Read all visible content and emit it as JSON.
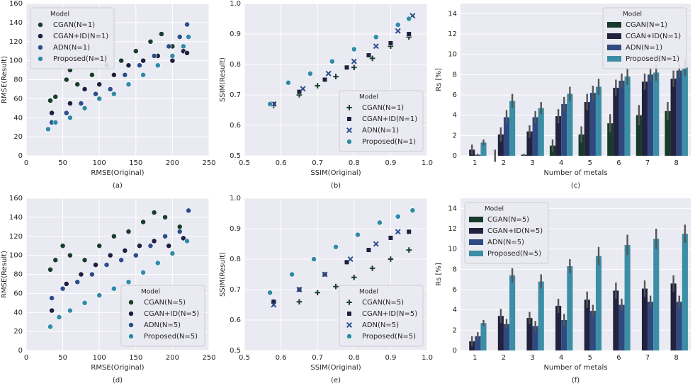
{
  "chart_data": [
    {
      "type": "scatter",
      "caption": "(a)",
      "xlabel": "RMSE(Original)",
      "ylabel": "RMSE(Result)",
      "xlim": [
        0,
        250
      ],
      "ylim": [
        0,
        160
      ],
      "xticks": [
        0,
        50,
        100,
        150,
        200,
        250
      ],
      "yticks": [
        0,
        20,
        40,
        60,
        80,
        100,
        120,
        140,
        160
      ],
      "grid": true,
      "legend": "upper left",
      "legend_title": "Model",
      "series": [
        {
          "name": "CGAN(N=1)",
          "color": "#1b3d2c",
          "marker": "circle",
          "x": [
            33,
            40,
            55,
            60,
            70,
            90,
            110,
            130,
            150,
            170,
            185,
            200
          ],
          "values": [
            58,
            62,
            80,
            90,
            75,
            85,
            95,
            100,
            110,
            120,
            128,
            115
          ]
        },
        {
          "name": "CGAN+ID(N=1)",
          "color": "#1f1f40",
          "marker": "circle",
          "x": [
            35,
            60,
            80,
            100,
            120,
            140,
            160,
            180,
            200,
            215,
            220
          ],
          "values": [
            45,
            55,
            70,
            75,
            85,
            95,
            100,
            105,
            100,
            110,
            108
          ]
        },
        {
          "name": "ADN(N=1)",
          "color": "#2c4f8c",
          "marker": "circle",
          "x": [
            35,
            55,
            75,
            95,
            115,
            135,
            155,
            175,
            195,
            210,
            220
          ],
          "values": [
            35,
            45,
            55,
            65,
            70,
            85,
            95,
            105,
            115,
            125,
            138
          ]
        },
        {
          "name": "Proposed(N=1)",
          "color": "#2f8ba8",
          "marker": "circle",
          "x": [
            30,
            40,
            60,
            80,
            100,
            120,
            140,
            160,
            180,
            200,
            215,
            222
          ],
          "values": [
            28,
            35,
            40,
            50,
            60,
            65,
            75,
            85,
            95,
            105,
            115,
            125
          ]
        }
      ]
    },
    {
      "type": "scatter",
      "caption": "(b)",
      "xlabel": "SSIM(Original)",
      "ylabel": "SSIM(Result)",
      "xlim": [
        0.5,
        1
      ],
      "ylim": [
        0.5,
        1
      ],
      "xticks": [
        0.5,
        0.6,
        0.7,
        0.8,
        0.9,
        {
          "value": 1,
          "label": "1.0"
        }
      ],
      "yticks": [
        0.5,
        0.6,
        0.7,
        0.8,
        0.9,
        {
          "value": 1,
          "label": "1.0"
        }
      ],
      "grid": true,
      "legend": "lower right",
      "legend_title": "Model",
      "series": [
        {
          "name": "CGAN(N=1)",
          "color": "#1b3d2c",
          "marker": "plus",
          "x": [
            0.58,
            0.65,
            0.7,
            0.75,
            0.8,
            0.85,
            0.9,
            0.95
          ],
          "values": [
            0.665,
            0.7,
            0.73,
            0.76,
            0.79,
            0.82,
            0.86,
            0.89
          ]
        },
        {
          "name": "CGAN+ID(N=1)",
          "color": "#1f1f40",
          "marker": "square",
          "x": [
            0.58,
            0.65,
            0.72,
            0.78,
            0.84,
            0.9,
            0.95
          ],
          "values": [
            0.67,
            0.71,
            0.75,
            0.79,
            0.83,
            0.87,
            0.9
          ]
        },
        {
          "name": "ADN(N=1)",
          "color": "#2c4f8c",
          "marker": "x",
          "x": [
            0.58,
            0.66,
            0.73,
            0.8,
            0.86,
            0.92,
            0.96
          ],
          "values": [
            0.67,
            0.72,
            0.77,
            0.81,
            0.86,
            0.91,
            0.96
          ]
        },
        {
          "name": "Proposed(N=1)",
          "color": "#2f8ba8",
          "marker": "circle",
          "x": [
            0.57,
            0.62,
            0.68,
            0.74,
            0.8,
            0.86,
            0.92,
            0.95
          ],
          "values": [
            0.67,
            0.74,
            0.77,
            0.81,
            0.85,
            0.89,
            0.93,
            0.95
          ]
        }
      ]
    },
    {
      "type": "bar",
      "caption": "(c)",
      "xlabel": "Number of metals",
      "ylabel": "Rs [%]",
      "categories": [
        "1",
        "2",
        "3",
        "4",
        "5",
        "6",
        "7",
        "8"
      ],
      "ylim": [
        0,
        15
      ],
      "yticks": [
        0,
        2,
        4,
        6,
        8,
        10,
        12,
        14
      ],
      "grid": true,
      "legend": "upper right",
      "legend_title": "Model",
      "series": [
        {
          "name": "CGAN(N=1)",
          "color": "#173b2b",
          "values": [
            0,
            0,
            0.1,
            1,
            2.1,
            3.2,
            4,
            4.4
          ],
          "errors": [
            0,
            0.6,
            0.1,
            0.6,
            0.8,
            0.9,
            1,
            0.9
          ]
        },
        {
          "name": "CGAN+ID(N=1)",
          "color": "#22223f",
          "values": [
            0.6,
            2.1,
            2.4,
            3.9,
            5.3,
            6.7,
            7.3,
            7.6
          ],
          "errors": [
            0.5,
            0.7,
            0.6,
            0.7,
            0.8,
            0.8,
            0.8,
            0.8
          ]
        },
        {
          "name": "ADN(N=1)",
          "color": "#2f4a80",
          "values": [
            0.1,
            3.8,
            3.8,
            5.1,
            6.2,
            7.4,
            8,
            8.4
          ],
          "errors": [
            0.1,
            0.7,
            0.6,
            0.7,
            0.7,
            0.7,
            0.7,
            0.7
          ]
        },
        {
          "name": "Proposed(N=1)",
          "color": "#3c8ea6",
          "values": [
            1.3,
            5.4,
            4.7,
            6.1,
            6.8,
            7.8,
            8.2,
            8.7
          ],
          "errors": [
            0.3,
            0.7,
            0.6,
            0.7,
            0.8,
            0.8,
            0.8,
            0.8
          ]
        }
      ]
    },
    {
      "type": "scatter",
      "caption": "(d)",
      "xlabel": "RMSE(Original)",
      "ylabel": "RMSE(Result)",
      "xlim": [
        0,
        250
      ],
      "ylim": [
        0,
        160
      ],
      "xticks": [
        0,
        50,
        100,
        150,
        200,
        250
      ],
      "yticks": [
        0,
        20,
        40,
        60,
        80,
        100,
        120,
        140,
        160
      ],
      "grid": true,
      "legend": "lower right",
      "legend_title": "Model",
      "series": [
        {
          "name": "CGAN(N=5)",
          "color": "#1b3d2c",
          "marker": "circle",
          "x": [
            33,
            40,
            50,
            60,
            80,
            100,
            120,
            140,
            160,
            175,
            190,
            210
          ],
          "values": [
            85,
            95,
            110,
            100,
            95,
            110,
            120,
            125,
            135,
            145,
            140,
            130
          ]
        },
        {
          "name": "CGAN+ID(N=5)",
          "color": "#1f1f40",
          "marker": "circle",
          "x": [
            35,
            55,
            75,
            95,
            115,
            135,
            155,
            175,
            195,
            215
          ],
          "values": [
            42,
            70,
            80,
            90,
            100,
            105,
            110,
            115,
            110,
            118
          ]
        },
        {
          "name": "ADN(N=5)",
          "color": "#2c4f8c",
          "marker": "circle",
          "x": [
            35,
            50,
            70,
            90,
            110,
            130,
            150,
            170,
            190,
            210,
            222
          ],
          "values": [
            55,
            65,
            72,
            80,
            90,
            95,
            100,
            110,
            120,
            125,
            147
          ]
        },
        {
          "name": "Proposed(N=5)",
          "color": "#2f8ba8",
          "marker": "circle",
          "x": [
            33,
            45,
            60,
            80,
            100,
            120,
            140,
            160,
            180,
            200,
            220
          ],
          "values": [
            25,
            35,
            42,
            50,
            58,
            65,
            72,
            82,
            92,
            102,
            115
          ]
        }
      ]
    },
    {
      "type": "scatter",
      "caption": "(e)",
      "xlabel": "SSIM(Original)",
      "ylabel": "SSIM(Result)",
      "xlim": [
        0.5,
        1
      ],
      "ylim": [
        0.5,
        1
      ],
      "xticks": [
        0.5,
        0.6,
        0.7,
        0.8,
        0.9,
        {
          "value": 1,
          "label": "1.0"
        }
      ],
      "yticks": [
        0.5,
        0.6,
        0.7,
        0.8,
        0.9,
        {
          "value": 1,
          "label": "1.0"
        }
      ],
      "grid": true,
      "legend": "lower right",
      "legend_title": "Model",
      "series": [
        {
          "name": "CGAN(N=5)",
          "color": "#1b3d2c",
          "marker": "plus",
          "x": [
            0.58,
            0.65,
            0.7,
            0.75,
            0.8,
            0.85,
            0.9,
            0.95
          ],
          "values": [
            0.66,
            0.66,
            0.69,
            0.71,
            0.74,
            0.77,
            0.8,
            0.83
          ]
        },
        {
          "name": "CGAN+ID(N=5)",
          "color": "#1f1f40",
          "marker": "square",
          "x": [
            0.58,
            0.65,
            0.72,
            0.78,
            0.84,
            0.9,
            0.95
          ],
          "values": [
            0.66,
            0.7,
            0.75,
            0.79,
            0.83,
            0.87,
            0.89
          ]
        },
        {
          "name": "ADN(N=5)",
          "color": "#2c4f8c",
          "marker": "x",
          "x": [
            0.58,
            0.65,
            0.72,
            0.79,
            0.86,
            0.92
          ],
          "values": [
            0.65,
            0.7,
            0.75,
            0.8,
            0.85,
            0.89
          ]
        },
        {
          "name": "Proposed(N=5)",
          "color": "#2f8ba8",
          "marker": "circle",
          "x": [
            0.57,
            0.63,
            0.69,
            0.75,
            0.81,
            0.87,
            0.92,
            0.96
          ],
          "values": [
            0.69,
            0.75,
            0.8,
            0.84,
            0.88,
            0.92,
            0.94,
            0.96
          ]
        }
      ]
    },
    {
      "type": "bar",
      "caption": "(f)",
      "xlabel": "Number of metals",
      "ylabel": "Rs [%]",
      "categories": [
        "1",
        "2",
        "3",
        "4",
        "5",
        "6",
        "7",
        "8"
      ],
      "ylim": [
        0,
        15
      ],
      "yticks": [
        0,
        2,
        4,
        6,
        8,
        10,
        12,
        14
      ],
      "grid": true,
      "legend": "upper left",
      "legend_title": "Model",
      "series": [
        {
          "name": "CGAN(N=5)",
          "color": "#173b2b",
          "values": [
            0,
            0,
            0,
            0,
            0,
            0,
            0,
            0
          ],
          "errors": [
            0,
            0,
            0,
            0,
            0,
            0,
            0,
            0
          ]
        },
        {
          "name": "CGAN+ID(N=5)",
          "color": "#22223f",
          "values": [
            0.9,
            3.4,
            3.2,
            4.4,
            5,
            5.9,
            6.1,
            6.6
          ],
          "errors": [
            0.5,
            0.7,
            0.6,
            0.7,
            0.8,
            0.8,
            0.8,
            0.8
          ]
        },
        {
          "name": "ADN(N=5)",
          "color": "#2f4a80",
          "values": [
            1.4,
            2.6,
            2.4,
            3,
            3.9,
            4.5,
            4.8,
            4.8
          ],
          "errors": [
            0.4,
            0.5,
            0.5,
            0.6,
            0.6,
            0.6,
            0.6,
            0.6
          ]
        },
        {
          "name": "Proposed(N=5)",
          "color": "#3c8ea6",
          "values": [
            2.7,
            7.4,
            6.8,
            8.3,
            9.3,
            10.4,
            11,
            11.5
          ],
          "errors": [
            0.3,
            0.7,
            0.7,
            0.7,
            0.9,
            1,
            1,
            0.9
          ]
        }
      ]
    }
  ]
}
